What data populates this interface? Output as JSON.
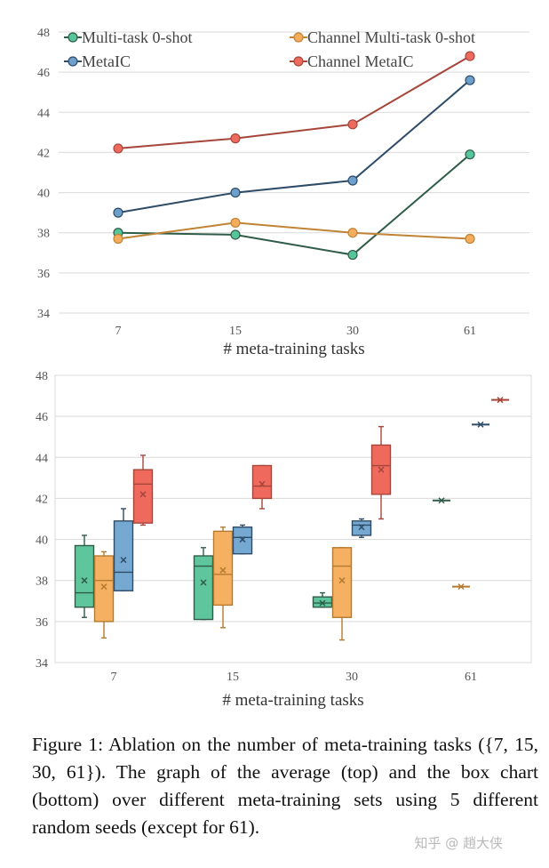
{
  "chart_data": [
    {
      "type": "line",
      "xlabel": "# meta-training tasks",
      "ylabel": "",
      "categories": [
        "7",
        "15",
        "30",
        "61"
      ],
      "ylim": [
        34,
        48
      ],
      "yticks": [
        "34",
        "36",
        "38",
        "40",
        "42",
        "44",
        "46",
        "48"
      ],
      "legend_position": "top",
      "series": [
        {
          "name": "Multi-task 0-shot",
          "color": "#2f5c48",
          "marker": "#56c59a",
          "values": [
            38.0,
            37.9,
            36.9,
            41.9
          ]
        },
        {
          "name": "Channel Multi-task 0-shot",
          "color": "#c08436",
          "marker": "#f3ad5c",
          "values": [
            37.7,
            38.5,
            38.0,
            37.7
          ]
        },
        {
          "name": "MetaIC",
          "color": "#2e4b67",
          "marker": "#6d9fcb",
          "values": [
            39.0,
            40.0,
            40.6,
            45.6
          ]
        },
        {
          "name": "Channel MetaIC",
          "color": "#a6463a",
          "marker": "#ec6b5d",
          "values": [
            42.2,
            42.7,
            43.4,
            46.8
          ]
        }
      ]
    },
    {
      "type": "box",
      "xlabel": "# meta-training tasks",
      "ylabel": "",
      "categories": [
        "7",
        "15",
        "30",
        "61"
      ],
      "ylim": [
        34,
        48
      ],
      "yticks": [
        "34",
        "36",
        "38",
        "40",
        "42",
        "44",
        "46",
        "48"
      ],
      "series": [
        {
          "name": "Multi-task 0-shot",
          "fill": "#5ec59c",
          "stroke": "#2f5c48",
          "boxes": [
            {
              "min": 36.2,
              "q1": 36.7,
              "median": 37.4,
              "q3": 39.7,
              "max": 40.2,
              "mean": 38.0
            },
            {
              "min": 36.1,
              "q1": 36.1,
              "median": 38.7,
              "q3": 39.2,
              "max": 39.6,
              "mean": 37.9
            },
            {
              "min": 36.7,
              "q1": 36.7,
              "median": 36.9,
              "q3": 37.2,
              "max": 37.4,
              "mean": 36.9
            },
            {
              "min": 41.9,
              "q1": 41.9,
              "median": 41.9,
              "q3": 41.9,
              "max": 41.9,
              "mean": 41.9
            }
          ]
        },
        {
          "name": "Channel Multi-task 0-shot",
          "fill": "#f5b062",
          "stroke": "#b47a2f",
          "boxes": [
            {
              "min": 35.2,
              "q1": 36.0,
              "median": 38.0,
              "q3": 39.2,
              "max": 39.4,
              "mean": 37.7
            },
            {
              "min": 35.7,
              "q1": 36.8,
              "median": 38.3,
              "q3": 40.4,
              "max": 40.6,
              "mean": 38.5
            },
            {
              "min": 35.1,
              "q1": 36.2,
              "median": 38.7,
              "q3": 39.6,
              "max": 39.6,
              "mean": 38.0
            },
            {
              "min": 37.7,
              "q1": 37.7,
              "median": 37.7,
              "q3": 37.7,
              "max": 37.7,
              "mean": 37.7
            }
          ]
        },
        {
          "name": "MetaIC",
          "fill": "#76a9d2",
          "stroke": "#2e4b67",
          "boxes": [
            {
              "min": 37.5,
              "q1": 37.5,
              "median": 38.4,
              "q3": 40.9,
              "max": 41.5,
              "mean": 39.0
            },
            {
              "min": 39.3,
              "q1": 39.3,
              "median": 40.1,
              "q3": 40.6,
              "max": 40.7,
              "mean": 40.0
            },
            {
              "min": 40.1,
              "q1": 40.2,
              "median": 40.7,
              "q3": 40.9,
              "max": 41.0,
              "mean": 40.6
            },
            {
              "min": 45.6,
              "q1": 45.6,
              "median": 45.6,
              "q3": 45.6,
              "max": 45.6,
              "mean": 45.6
            }
          ]
        },
        {
          "name": "Channel MetaIC",
          "fill": "#ef6a5d",
          "stroke": "#a6463a",
          "boxes": [
            {
              "min": 40.7,
              "q1": 40.8,
              "median": 42.7,
              "q3": 43.4,
              "max": 44.1,
              "mean": 42.2
            },
            {
              "min": 41.5,
              "q1": 42.0,
              "median": 42.6,
              "q3": 43.6,
              "max": 43.6,
              "mean": 42.7
            },
            {
              "min": 41.0,
              "q1": 42.2,
              "median": 43.6,
              "q3": 44.6,
              "max": 45.5,
              "mean": 43.4
            },
            {
              "min": 46.8,
              "q1": 46.8,
              "median": 46.8,
              "q3": 46.8,
              "max": 46.8,
              "mean": 46.8
            }
          ]
        }
      ]
    }
  ],
  "caption": "Figure 1:  Ablation on the number of meta-training tasks ({7, 15, 30, 61}). The graph of the average (top) and the box chart (bottom) over different meta-training sets using 5 different random seeds (except for 61).",
  "watermark": "知乎 @ 趙大侠"
}
